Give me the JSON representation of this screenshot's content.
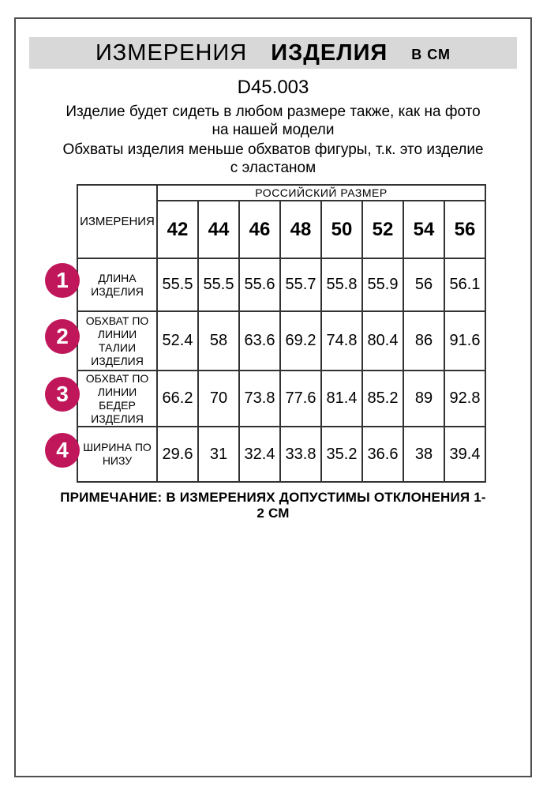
{
  "header": {
    "title_regular": "ИЗМЕРЕНИЯ",
    "title_bold": "ИЗДЕЛИЯ",
    "unit": "В СМ"
  },
  "product_code": "D45.003",
  "intro": {
    "line1": "Изделие будет сидеть в любом размере также, как на фото на нашей модели",
    "line2": "Обхваты изделия меньше обхватов фигуры, т.к. это изделие с эластаном"
  },
  "table": {
    "corner_header": "ИЗМЕРЕНИЯ",
    "group_header": "РОССИЙСКИЙ РАЗМЕР",
    "sizes": [
      "42",
      "44",
      "46",
      "48",
      "50",
      "52",
      "54",
      "56"
    ],
    "rows": [
      {
        "num": "1",
        "label": "ДЛИНА ИЗДЕЛИЯ",
        "values": [
          "55.5",
          "55.5",
          "55.6",
          "55.7",
          "55.8",
          "55.9",
          "56",
          "56.1"
        ]
      },
      {
        "num": "2",
        "label": "ОБХВАТ ПО ЛИНИИ ТАЛИИ ИЗДЕЛИЯ",
        "values": [
          "52.4",
          "58",
          "63.6",
          "69.2",
          "74.8",
          "80.4",
          "86",
          "91.6"
        ]
      },
      {
        "num": "3",
        "label": "ОБХВАТ ПО ЛИНИИ БЕДЕР ИЗДЕЛИЯ",
        "values": [
          "66.2",
          "70",
          "73.8",
          "77.6",
          "81.4",
          "85.2",
          "89",
          "92.8"
        ]
      },
      {
        "num": "4",
        "label": "ШИРИНА ПО НИЗУ",
        "values": [
          "29.6",
          "31",
          "32.4",
          "33.8",
          "35.2",
          "36.6",
          "38",
          "39.4"
        ]
      }
    ]
  },
  "note": "ПРИМЕЧАНИЕ: В ИЗМЕРЕНИЯХ ДОПУСТИМЫ ОТКЛОНЕНИЯ 1-2 СМ",
  "colors": {
    "accent": "#c0165a",
    "bar_bg": "#d8d8d8",
    "page_border": "#4f4f4f",
    "grid": "#333333"
  }
}
